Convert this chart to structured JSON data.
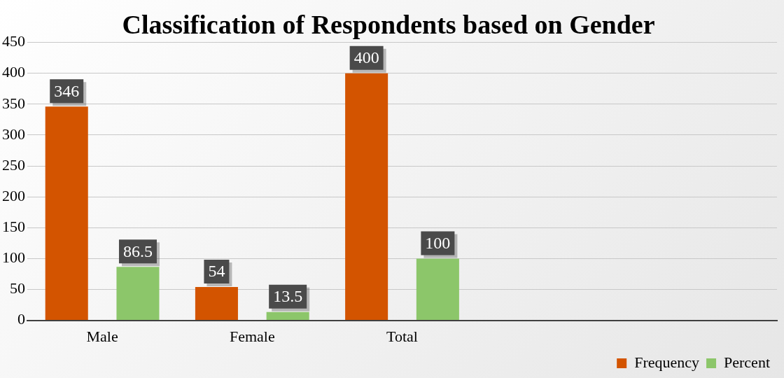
{
  "chart_data": {
    "type": "bar",
    "title": "Classification of Respondents based on Gender",
    "categories": [
      "Male",
      "Female",
      "Total",
      null,
      null
    ],
    "series": [
      {
        "name": "Frequency",
        "color": "#d35400",
        "values": [
          346,
          54,
          400,
          null,
          null
        ]
      },
      {
        "name": "Percent",
        "color": "#8cc66a",
        "values": [
          86.5,
          13.5,
          100,
          null,
          null
        ]
      }
    ],
    "ylim": [
      0,
      450
    ],
    "yticks": [
      0,
      50,
      100,
      150,
      200,
      250,
      300,
      350,
      400,
      450
    ],
    "grid": "y",
    "legend": "bottom right",
    "data_labels": true
  }
}
